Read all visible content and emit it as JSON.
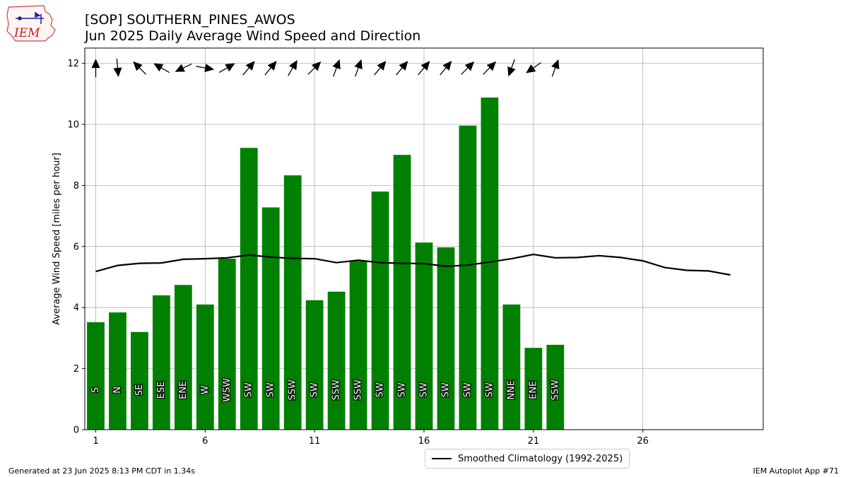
{
  "header": {
    "title": "[SOP] SOUTHERN_PINES_AWOS",
    "subtitle": "Jun 2025 Daily Average Wind Speed and Direction"
  },
  "logo": {
    "text": "IEM"
  },
  "footer": {
    "generated": "Generated at 23 Jun 2025 8:13 PM CDT in 1.34s",
    "app": "IEM Autoplot App #71"
  },
  "colors": {
    "bars": "#008000",
    "climatology": "#000000",
    "grid": "#b0b0b0",
    "arrows": "#000000"
  },
  "chart_data": {
    "type": "bar",
    "ylabel": "Average Wind Speed [miles per hour]",
    "xlabel": "",
    "ylim": [
      0,
      12.5
    ],
    "xlim": [
      0.5,
      31.5
    ],
    "grid": true,
    "xticks": [
      1,
      6,
      11,
      16,
      21,
      26
    ],
    "yticks": [
      0,
      2,
      4,
      6,
      8,
      10,
      12
    ],
    "legend_position": "below",
    "days": [
      1,
      2,
      3,
      4,
      5,
      6,
      7,
      8,
      9,
      10,
      11,
      12,
      13,
      14,
      15,
      16,
      17,
      18,
      19,
      20,
      21,
      22
    ],
    "values": [
      3.52,
      3.84,
      3.2,
      4.4,
      4.74,
      4.1,
      5.6,
      9.23,
      7.28,
      8.33,
      4.24,
      4.52,
      5.52,
      7.8,
      9.0,
      6.13,
      5.97,
      9.96,
      10.88,
      4.1,
      2.68,
      2.78
    ],
    "directions": [
      "S",
      "N",
      "SE",
      "ESE",
      "ENE",
      "W",
      "WSW",
      "SW",
      "SW",
      "SSW",
      "SW",
      "SSW",
      "SSW",
      "SW",
      "SW",
      "SW",
      "SW",
      "SW",
      "SW",
      "NNE",
      "ENE",
      "SSW"
    ],
    "arrow_heading_deg": [
      0,
      175,
      315,
      300,
      245,
      100,
      60,
      40,
      40,
      30,
      45,
      20,
      20,
      40,
      40,
      40,
      40,
      45,
      45,
      200,
      235,
      20
    ],
    "series": [
      {
        "name": "Smoothed Climatology (1992-2025)",
        "type": "line",
        "x": [
          1,
          2,
          3,
          4,
          5,
          6,
          7,
          8,
          9,
          10,
          11,
          12,
          13,
          14,
          15,
          16,
          17,
          18,
          19,
          20,
          21,
          22,
          23,
          24,
          25,
          26,
          27,
          28,
          29,
          30
        ],
        "values": [
          5.18,
          5.38,
          5.45,
          5.46,
          5.58,
          5.6,
          5.63,
          5.72,
          5.65,
          5.61,
          5.6,
          5.47,
          5.55,
          5.47,
          5.45,
          5.44,
          5.35,
          5.39,
          5.49,
          5.6,
          5.74,
          5.63,
          5.64,
          5.7,
          5.64,
          5.53,
          5.31,
          5.22,
          5.2,
          5.07
        ]
      }
    ]
  }
}
